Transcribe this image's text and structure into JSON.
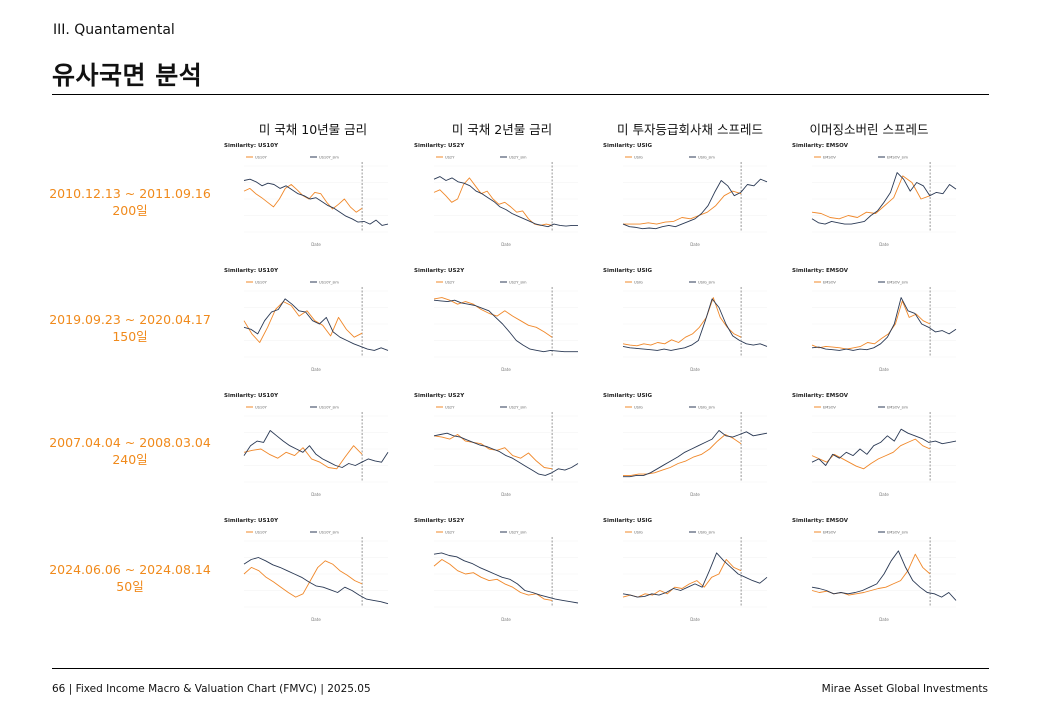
{
  "header": {
    "section": "III. Quantamental",
    "title": "유사국면 분석"
  },
  "columns": [
    "미 국채 10년물 금리",
    "미 국채 2년물 금리",
    "미 투자등급회사채 스프레드",
    "이머징소버린 스프레드"
  ],
  "rows": [
    {
      "period": "2010.12.13 ~ 2011.09.16",
      "days": "200일"
    },
    {
      "period": "2019.09.23 ~ 2020.04.17",
      "days": "150일"
    },
    {
      "period": "2007.04.04 ~ 2008.03.04",
      "days": "240일"
    },
    {
      "period": "2024.06.06 ~ 2024.08.14",
      "days": "50일"
    }
  ],
  "colors": {
    "current": "#f0882a",
    "similar": "#2b3a55",
    "accent": "#f08a1c"
  },
  "footer": {
    "left": "66 | Fixed Income Macro & Valuation Chart (FMVC) | 2025.05",
    "right": "Mirae Asset Global Investments"
  },
  "chart_data": [
    {
      "type": "line",
      "title": "Similarity: US10Y",
      "xlabel": "Date",
      "series": [
        {
          "name": "US10Y",
          "values": [
            0.62,
            0.66,
            0.58,
            0.52,
            0.45,
            0.38,
            0.5,
            0.66,
            0.72,
            0.64,
            0.55,
            0.5,
            0.6,
            0.58,
            0.45,
            0.35,
            0.42,
            0.5,
            0.38,
            0.3,
            0.36
          ]
        },
        {
          "name": "US10Y_sim",
          "values": [
            0.78,
            0.8,
            0.76,
            0.7,
            0.74,
            0.72,
            0.66,
            0.7,
            0.64,
            0.58,
            0.55,
            0.5,
            0.52,
            0.46,
            0.4,
            0.36,
            0.3,
            0.24,
            0.2,
            0.15,
            0.16,
            0.12,
            0.18,
            0.1,
            0.12
          ]
        }
      ]
    },
    {
      "type": "line",
      "title": "Similarity: US2Y",
      "xlabel": "Date",
      "series": [
        {
          "name": "US2Y",
          "values": [
            0.6,
            0.64,
            0.55,
            0.45,
            0.5,
            0.72,
            0.82,
            0.7,
            0.58,
            0.62,
            0.5,
            0.42,
            0.45,
            0.38,
            0.3,
            0.32,
            0.2,
            0.12,
            0.1,
            0.12,
            0.1
          ]
        },
        {
          "name": "US2Y_sim",
          "values": [
            0.8,
            0.84,
            0.78,
            0.82,
            0.76,
            0.74,
            0.7,
            0.62,
            0.58,
            0.52,
            0.46,
            0.38,
            0.34,
            0.28,
            0.24,
            0.2,
            0.16,
            0.12,
            0.1,
            0.08,
            0.12,
            0.1,
            0.09,
            0.1,
            0.1
          ]
        }
      ]
    },
    {
      "type": "line",
      "title": "Similarity: USIG",
      "xlabel": "Date",
      "series": [
        {
          "name": "USIG",
          "values": [
            0.12,
            0.12,
            0.12,
            0.14,
            0.12,
            0.15,
            0.16,
            0.22,
            0.2,
            0.25,
            0.3,
            0.4,
            0.55,
            0.62,
            0.58
          ]
        },
        {
          "name": "USIG_sim",
          "values": [
            0.12,
            0.08,
            0.07,
            0.05,
            0.06,
            0.05,
            0.08,
            0.1,
            0.08,
            0.12,
            0.16,
            0.2,
            0.28,
            0.4,
            0.6,
            0.78,
            0.7,
            0.55,
            0.6,
            0.72,
            0.7,
            0.8,
            0.76
          ]
        }
      ]
    },
    {
      "type": "line",
      "title": "Similarity: EMSOV",
      "xlabel": "Date",
      "series": [
        {
          "name": "EMSOV",
          "values": [
            0.3,
            0.28,
            0.22,
            0.2,
            0.25,
            0.22,
            0.3,
            0.28,
            0.4,
            0.52,
            0.85,
            0.75,
            0.5,
            0.55
          ]
        },
        {
          "name": "EMSOV_sim",
          "values": [
            0.2,
            0.14,
            0.12,
            0.16,
            0.14,
            0.12,
            0.12,
            0.14,
            0.16,
            0.25,
            0.32,
            0.45,
            0.6,
            0.9,
            0.8,
            0.62,
            0.75,
            0.7,
            0.55,
            0.6,
            0.58,
            0.72,
            0.65
          ]
        }
      ]
    },
    {
      "type": "line",
      "title": "Similarity: US10Y",
      "xlabel": "Date",
      "series": [
        {
          "name": "US10Y",
          "values": [
            0.55,
            0.35,
            0.22,
            0.45,
            0.72,
            0.84,
            0.78,
            0.62,
            0.7,
            0.55,
            0.48,
            0.32,
            0.6,
            0.42,
            0.3,
            0.36
          ]
        },
        {
          "name": "US10Y_sim",
          "values": [
            0.45,
            0.42,
            0.35,
            0.55,
            0.68,
            0.72,
            0.88,
            0.8,
            0.7,
            0.68,
            0.55,
            0.5,
            0.6,
            0.38,
            0.3,
            0.25,
            0.2,
            0.16,
            0.12,
            0.1,
            0.14,
            0.1
          ]
        }
      ]
    },
    {
      "type": "line",
      "title": "Similarity: US2Y",
      "xlabel": "Date",
      "series": [
        {
          "name": "US2Y",
          "values": [
            0.88,
            0.9,
            0.86,
            0.8,
            0.84,
            0.8,
            0.72,
            0.66,
            0.62,
            0.7,
            0.62,
            0.55,
            0.48,
            0.45,
            0.38,
            0.3
          ]
        },
        {
          "name": "US2Y_sim",
          "values": [
            0.86,
            0.85,
            0.84,
            0.86,
            0.82,
            0.8,
            0.78,
            0.74,
            0.7,
            0.6,
            0.5,
            0.38,
            0.25,
            0.18,
            0.12,
            0.1,
            0.08,
            0.1,
            0.09,
            0.08,
            0.08,
            0.08
          ]
        }
      ]
    },
    {
      "type": "line",
      "title": "Similarity: USIG",
      "xlabel": "Date",
      "series": [
        {
          "name": "USIG",
          "values": [
            0.2,
            0.18,
            0.17,
            0.2,
            0.18,
            0.22,
            0.2,
            0.26,
            0.22,
            0.3,
            0.35,
            0.45,
            0.6,
            0.9,
            0.6,
            0.45,
            0.35,
            0.3
          ]
        },
        {
          "name": "USIG_sim",
          "values": [
            0.16,
            0.14,
            0.13,
            0.12,
            0.11,
            0.1,
            0.12,
            0.1,
            0.12,
            0.14,
            0.18,
            0.25,
            0.55,
            0.88,
            0.75,
            0.5,
            0.32,
            0.25,
            0.2,
            0.18,
            0.2,
            0.16
          ]
        }
      ]
    },
    {
      "type": "line",
      "title": "Similarity: EMSOV",
      "xlabel": "Date",
      "series": [
        {
          "name": "EMSOV",
          "values": [
            0.18,
            0.14,
            0.16,
            0.15,
            0.14,
            0.12,
            0.14,
            0.16,
            0.22,
            0.2,
            0.28,
            0.35,
            0.5,
            0.85,
            0.6,
            0.65,
            0.55,
            0.5
          ]
        },
        {
          "name": "EMSOV_sim",
          "values": [
            0.14,
            0.15,
            0.12,
            0.11,
            0.1,
            0.12,
            0.1,
            0.12,
            0.11,
            0.14,
            0.2,
            0.3,
            0.5,
            0.9,
            0.7,
            0.66,
            0.5,
            0.45,
            0.38,
            0.4,
            0.35,
            0.42
          ]
        }
      ]
    },
    {
      "type": "line",
      "title": "Similarity: US10Y",
      "xlabel": "Date",
      "series": [
        {
          "name": "US10Y",
          "values": [
            0.45,
            0.48,
            0.5,
            0.42,
            0.36,
            0.45,
            0.4,
            0.52,
            0.35,
            0.3,
            0.22,
            0.2,
            0.38,
            0.55,
            0.42
          ]
        },
        {
          "name": "US10Y_sim",
          "values": [
            0.4,
            0.55,
            0.62,
            0.6,
            0.78,
            0.7,
            0.62,
            0.55,
            0.5,
            0.45,
            0.55,
            0.42,
            0.35,
            0.3,
            0.25,
            0.22,
            0.28,
            0.25,
            0.3,
            0.35,
            0.32,
            0.3,
            0.45
          ]
        }
      ]
    },
    {
      "type": "line",
      "title": "Similarity: US2Y",
      "xlabel": "Date",
      "series": [
        {
          "name": "US2Y",
          "values": [
            0.7,
            0.68,
            0.65,
            0.72,
            0.62,
            0.6,
            0.58,
            0.5,
            0.48,
            0.52,
            0.4,
            0.36,
            0.44,
            0.32,
            0.22,
            0.2
          ]
        },
        {
          "name": "US2Y_sim",
          "values": [
            0.7,
            0.72,
            0.74,
            0.7,
            0.68,
            0.64,
            0.6,
            0.56,
            0.54,
            0.5,
            0.46,
            0.4,
            0.36,
            0.3,
            0.24,
            0.18,
            0.12,
            0.1,
            0.14,
            0.2,
            0.18,
            0.22,
            0.28
          ]
        }
      ]
    },
    {
      "type": "line",
      "title": "Similarity: USIG",
      "xlabel": "Date",
      "series": [
        {
          "name": "USIG",
          "values": [
            0.1,
            0.1,
            0.12,
            0.12,
            0.14,
            0.18,
            0.22,
            0.28,
            0.32,
            0.38,
            0.42,
            0.5,
            0.62,
            0.72,
            0.66,
            0.58
          ]
        },
        {
          "name": "USIG_sim",
          "values": [
            0.08,
            0.08,
            0.1,
            0.1,
            0.14,
            0.2,
            0.26,
            0.32,
            0.38,
            0.45,
            0.5,
            0.55,
            0.6,
            0.65,
            0.78,
            0.7,
            0.68,
            0.72,
            0.76,
            0.7,
            0.72,
            0.74
          ]
        }
      ]
    },
    {
      "type": "line",
      "title": "Similarity: EMSOV",
      "xlabel": "Date",
      "series": [
        {
          "name": "EMSOV",
          "values": [
            0.4,
            0.35,
            0.3,
            0.42,
            0.36,
            0.3,
            0.24,
            0.2,
            0.28,
            0.35,
            0.4,
            0.45,
            0.55,
            0.6,
            0.65,
            0.55,
            0.5
          ]
        },
        {
          "name": "EMSOV_sim",
          "values": [
            0.3,
            0.35,
            0.25,
            0.42,
            0.36,
            0.45,
            0.4,
            0.5,
            0.42,
            0.55,
            0.6,
            0.7,
            0.62,
            0.8,
            0.74,
            0.7,
            0.66,
            0.6,
            0.62,
            0.58,
            0.6,
            0.62
          ]
        }
      ]
    },
    {
      "type": "line",
      "title": "Similarity: US10Y",
      "xlabel": "Date",
      "series": [
        {
          "name": "US10Y",
          "values": [
            0.5,
            0.6,
            0.55,
            0.45,
            0.38,
            0.3,
            0.22,
            0.15,
            0.2,
            0.4,
            0.6,
            0.7,
            0.65,
            0.55,
            0.48,
            0.4,
            0.35
          ]
        },
        {
          "name": "US10Y_sim",
          "values": [
            0.65,
            0.72,
            0.75,
            0.7,
            0.64,
            0.6,
            0.55,
            0.5,
            0.45,
            0.38,
            0.32,
            0.3,
            0.26,
            0.22,
            0.3,
            0.25,
            0.18,
            0.12,
            0.1,
            0.08,
            0.05
          ]
        }
      ]
    },
    {
      "type": "line",
      "title": "Similarity: US2Y",
      "xlabel": "Date",
      "series": [
        {
          "name": "US2Y",
          "values": [
            0.62,
            0.72,
            0.65,
            0.55,
            0.5,
            0.52,
            0.45,
            0.4,
            0.42,
            0.35,
            0.3,
            0.22,
            0.18,
            0.2,
            0.12,
            0.1
          ]
        },
        {
          "name": "US2Y_sim",
          "values": [
            0.8,
            0.82,
            0.78,
            0.76,
            0.7,
            0.66,
            0.6,
            0.55,
            0.5,
            0.45,
            0.42,
            0.35,
            0.25,
            0.22,
            0.18,
            0.15,
            0.12,
            0.1,
            0.08,
            0.06
          ]
        }
      ]
    },
    {
      "type": "line",
      "title": "Similarity: USIG",
      "xlabel": "Date",
      "series": [
        {
          "name": "USIG",
          "values": [
            0.15,
            0.18,
            0.15,
            0.2,
            0.18,
            0.25,
            0.2,
            0.3,
            0.28,
            0.35,
            0.4,
            0.3,
            0.45,
            0.5,
            0.72,
            0.6,
            0.55
          ]
        },
        {
          "name": "USIG_sim",
          "values": [
            0.2,
            0.18,
            0.15,
            0.16,
            0.2,
            0.18,
            0.22,
            0.28,
            0.25,
            0.3,
            0.35,
            0.3,
            0.55,
            0.82,
            0.7,
            0.6,
            0.5,
            0.45,
            0.4,
            0.36,
            0.45
          ]
        }
      ]
    },
    {
      "type": "line",
      "title": "Similarity: EMSOV",
      "xlabel": "Date",
      "series": [
        {
          "name": "EMSOV",
          "values": [
            0.25,
            0.22,
            0.24,
            0.2,
            0.22,
            0.18,
            0.2,
            0.22,
            0.25,
            0.28,
            0.3,
            0.35,
            0.4,
            0.55,
            0.8,
            0.6,
            0.5
          ]
        },
        {
          "name": "EMSOV_sim",
          "values": [
            0.3,
            0.28,
            0.25,
            0.2,
            0.22,
            0.2,
            0.22,
            0.25,
            0.3,
            0.35,
            0.5,
            0.7,
            0.85,
            0.6,
            0.4,
            0.3,
            0.22,
            0.2,
            0.15,
            0.22,
            0.1
          ]
        }
      ]
    }
  ]
}
